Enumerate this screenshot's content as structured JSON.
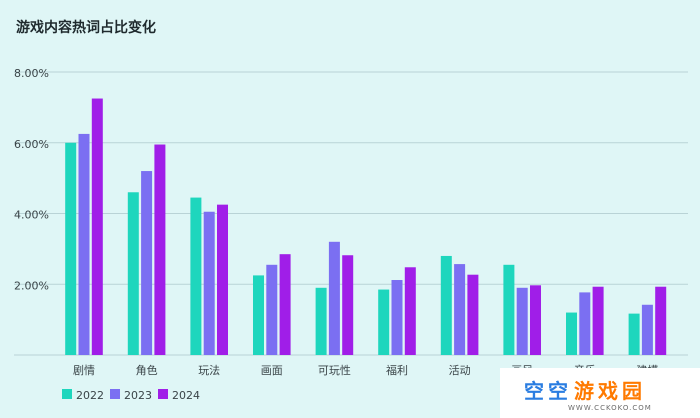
{
  "chart_data": {
    "type": "bar",
    "title": "游戏内容热词占比变化",
    "xlabel": "",
    "ylabel": "",
    "ylim": [
      0,
      8
    ],
    "yticks": [
      2,
      4,
      6,
      8
    ],
    "ytick_labels": [
      "2.00%",
      "4.00%",
      "6.00%",
      "8.00%"
    ],
    "grid": true,
    "legend_position": "bottom-left",
    "categories": [
      "剧情",
      "角色",
      "玩法",
      "画面",
      "可玩性",
      "福利",
      "活动",
      "画风",
      "音乐",
      "建模"
    ],
    "series": [
      {
        "name": "2022",
        "color": "#1ed6bd",
        "values": [
          6.0,
          4.6,
          4.45,
          2.25,
          1.9,
          1.85,
          2.8,
          2.55,
          1.2,
          1.17
        ]
      },
      {
        "name": "2023",
        "color": "#7b6ff2",
        "values": [
          6.25,
          5.2,
          4.05,
          2.55,
          3.2,
          2.12,
          2.57,
          1.9,
          1.77,
          1.42
        ]
      },
      {
        "name": "2024",
        "color": "#a01ee8",
        "values": [
          7.25,
          5.95,
          4.25,
          2.85,
          2.82,
          2.48,
          2.27,
          1.97,
          1.93,
          1.93
        ]
      }
    ]
  },
  "watermark": {
    "text": "空空游戏园",
    "subtext": "WWW.CCKOKO.COM",
    "colors": [
      "#2a7de1",
      "#ff7a00"
    ]
  }
}
